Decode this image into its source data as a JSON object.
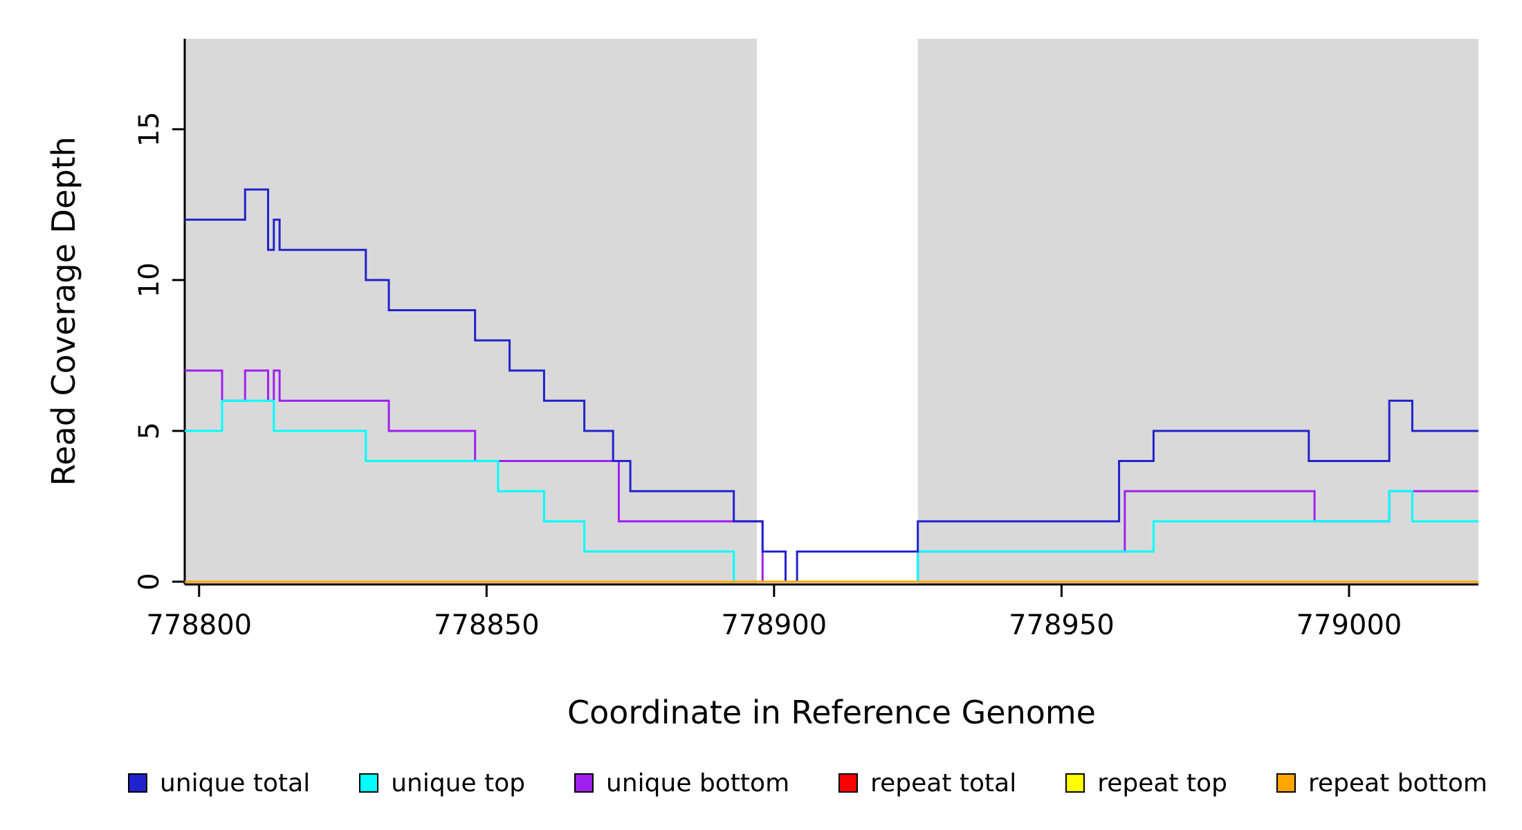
{
  "figure": {
    "y_axis_label": "Read Coverage Depth",
    "x_axis_label": "Coordinate in Reference Genome"
  },
  "chart_data": {
    "type": "line",
    "step": "after",
    "title": "",
    "xlabel": "Coordinate in Reference Genome",
    "ylabel": "Read Coverage Depth",
    "x_range": [
      778797.5,
      779022.5
    ],
    "y_range": [
      0,
      18
    ],
    "x_ticks": [
      778800,
      778850,
      778900,
      778950,
      779000
    ],
    "y_ticks": [
      0,
      5,
      10,
      15
    ],
    "grid": false,
    "legend_position": "bottom",
    "background_regions": [
      {
        "name": "left-shaded-region",
        "x0": 778797.5,
        "x1": 778897,
        "color": "#d9d9d9"
      },
      {
        "name": "right-shaded-region",
        "x0": 778925,
        "x1": 779022.5,
        "color": "#d9d9d9"
      }
    ],
    "series": [
      {
        "name": "unique total",
        "color": "#2222cc",
        "points": [
          [
            778797.5,
            12
          ],
          [
            778808,
            13
          ],
          [
            778812,
            11
          ],
          [
            778813,
            12
          ],
          [
            778814,
            11
          ],
          [
            778829,
            10
          ],
          [
            778833,
            9
          ],
          [
            778848,
            8
          ],
          [
            778854,
            7
          ],
          [
            778860,
            6
          ],
          [
            778867,
            5
          ],
          [
            778872,
            4
          ],
          [
            778875,
            3
          ],
          [
            778893,
            2
          ],
          [
            778898,
            1
          ],
          [
            778902,
            0
          ],
          [
            778904,
            1
          ],
          [
            778925,
            2
          ],
          [
            778960,
            4
          ],
          [
            778966,
            5
          ],
          [
            778993,
            4
          ],
          [
            779007,
            6
          ],
          [
            779011,
            5
          ],
          [
            779022.5,
            5
          ]
        ]
      },
      {
        "name": "unique top",
        "color": "#00ffff",
        "points": [
          [
            778797.5,
            5
          ],
          [
            778804,
            6
          ],
          [
            778813,
            5
          ],
          [
            778829,
            4
          ],
          [
            778852,
            3
          ],
          [
            778860,
            2
          ],
          [
            778867,
            1
          ],
          [
            778893,
            0
          ],
          [
            778925,
            1
          ],
          [
            778966,
            2
          ],
          [
            779007,
            3
          ],
          [
            779011,
            2
          ],
          [
            779022.5,
            2
          ]
        ]
      },
      {
        "name": "unique bottom",
        "color": "#a020f0",
        "points": [
          [
            778797.5,
            7
          ],
          [
            778804,
            6
          ],
          [
            778808,
            7
          ],
          [
            778812,
            6
          ],
          [
            778813,
            7
          ],
          [
            778814,
            6
          ],
          [
            778833,
            5
          ],
          [
            778848,
            4
          ],
          [
            778873,
            2
          ],
          [
            778898,
            0
          ],
          [
            778925,
            1
          ],
          [
            778961,
            3
          ],
          [
            778994,
            2
          ],
          [
            779007,
            3
          ],
          [
            779022.5,
            3
          ]
        ]
      },
      {
        "name": "repeat total",
        "color": "#ff0000",
        "points": [
          [
            778797.5,
            0
          ],
          [
            779022.5,
            0
          ]
        ]
      },
      {
        "name": "repeat top",
        "color": "#ffff00",
        "points": [
          [
            778797.5,
            0
          ],
          [
            779022.5,
            0
          ]
        ]
      },
      {
        "name": "repeat bottom",
        "color": "#ffa500",
        "points": [
          [
            778797.5,
            0
          ],
          [
            779022.5,
            0
          ]
        ]
      }
    ]
  },
  "legend": {
    "items": [
      {
        "label": "unique total",
        "color": "#2222cc"
      },
      {
        "label": "unique top",
        "color": "#00ffff"
      },
      {
        "label": "unique bottom",
        "color": "#a020f0"
      },
      {
        "label": "repeat total",
        "color": "#ff0000"
      },
      {
        "label": "repeat top",
        "color": "#ffff00"
      },
      {
        "label": "repeat bottom",
        "color": "#ffa500"
      }
    ]
  }
}
